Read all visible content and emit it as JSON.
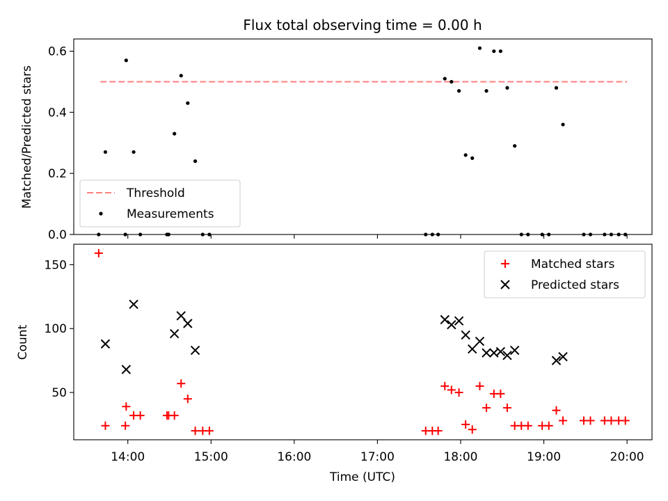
{
  "chart_data": [
    {
      "type": "scatter",
      "title": "Flux total observing time = 0.00 h",
      "xlabel": "",
      "ylabel": "Matched/Predicted stars",
      "x_unit": "hours UTC",
      "xlim": [
        13.35,
        20.3
      ],
      "ylim": [
        0,
        0.64
      ],
      "yticks": [
        0.0,
        0.2,
        0.4,
        0.6
      ],
      "yticklabels": [
        "0.0",
        "0.2",
        "0.4",
        "0.6"
      ],
      "legend": {
        "position": "bottom-left"
      },
      "series": [
        {
          "name": "Threshold",
          "kind": "line",
          "style": "dashed",
          "color": "#ff7f7f",
          "x": [
            13.67,
            20.0
          ],
          "y": [
            0.5,
            0.5
          ]
        },
        {
          "name": "Measurements",
          "kind": "scatter",
          "marker": "dot",
          "color": "#000000",
          "x": [
            13.65,
            13.73,
            13.97,
            13.98,
            14.07,
            14.15,
            14.47,
            14.49,
            14.56,
            14.64,
            14.72,
            14.81,
            14.9,
            14.98,
            17.58,
            17.66,
            17.73,
            17.81,
            17.89,
            17.98,
            18.06,
            18.14,
            18.23,
            18.31,
            18.4,
            18.48,
            18.56,
            18.65,
            18.73,
            18.81,
            18.98,
            19.06,
            19.15,
            19.23,
            19.48,
            19.56,
            19.73,
            19.81,
            19.9,
            19.98
          ],
          "y": [
            0.0,
            0.27,
            0.0,
            0.57,
            0.27,
            0.0,
            0.0,
            0.0,
            0.33,
            0.52,
            0.43,
            0.24,
            0.0,
            0.0,
            0.0,
            0.0,
            0.0,
            0.51,
            0.5,
            0.47,
            0.26,
            0.25,
            0.61,
            0.47,
            0.6,
            0.6,
            0.48,
            0.29,
            0.0,
            0.0,
            0.0,
            0.0,
            0.48,
            0.36,
            0.0,
            0.0,
            0.0,
            0.0,
            0.0,
            0.0
          ]
        }
      ]
    },
    {
      "type": "scatter",
      "xlabel": "Time (UTC)",
      "ylabel": "Count",
      "x_unit": "hours UTC",
      "xlim": [
        13.35,
        20.3
      ],
      "ylim": [
        13,
        166
      ],
      "xticks": [
        14,
        15,
        16,
        17,
        18,
        19,
        20
      ],
      "xticklabels": [
        "14:00",
        "15:00",
        "16:00",
        "17:00",
        "18:00",
        "19:00",
        "20:00"
      ],
      "yticks": [
        50,
        100,
        150
      ],
      "yticklabels": [
        "50",
        "100",
        "150"
      ],
      "legend": {
        "position": "top-right"
      },
      "series": [
        {
          "name": "Matched stars",
          "kind": "scatter",
          "marker": "plus",
          "color": "#ff0000",
          "x": [
            13.65,
            13.73,
            13.97,
            13.98,
            14.07,
            14.15,
            14.47,
            14.49,
            14.56,
            14.64,
            14.72,
            14.81,
            14.9,
            14.98,
            17.58,
            17.66,
            17.73,
            17.81,
            17.89,
            17.98,
            18.06,
            18.14,
            18.23,
            18.31,
            18.4,
            18.48,
            18.56,
            18.65,
            18.73,
            18.81,
            18.98,
            19.06,
            19.15,
            19.23,
            19.48,
            19.56,
            19.73,
            19.81,
            19.9,
            19.98
          ],
          "y": [
            159,
            24,
            24,
            39,
            32,
            32,
            32,
            32,
            32,
            57,
            45,
            20,
            20,
            20,
            20,
            20,
            20,
            55,
            52,
            50,
            25,
            21,
            55,
            38,
            49,
            49,
            38,
            24,
            24,
            24,
            24,
            24,
            36,
            28,
            28,
            28,
            28,
            28,
            28,
            28
          ]
        },
        {
          "name": "Predicted stars",
          "kind": "scatter",
          "marker": "x",
          "color": "#000000",
          "x": [
            13.73,
            13.98,
            14.07,
            14.56,
            14.64,
            14.72,
            14.81,
            17.81,
            17.89,
            17.98,
            18.06,
            18.14,
            18.23,
            18.31,
            18.4,
            18.48,
            18.56,
            18.65,
            19.15,
            19.23
          ],
          "y": [
            88,
            68,
            119,
            96,
            110,
            104,
            83,
            107,
            103,
            106,
            95,
            84,
            90,
            81,
            81,
            82,
            79,
            83,
            75,
            78
          ]
        }
      ]
    }
  ]
}
